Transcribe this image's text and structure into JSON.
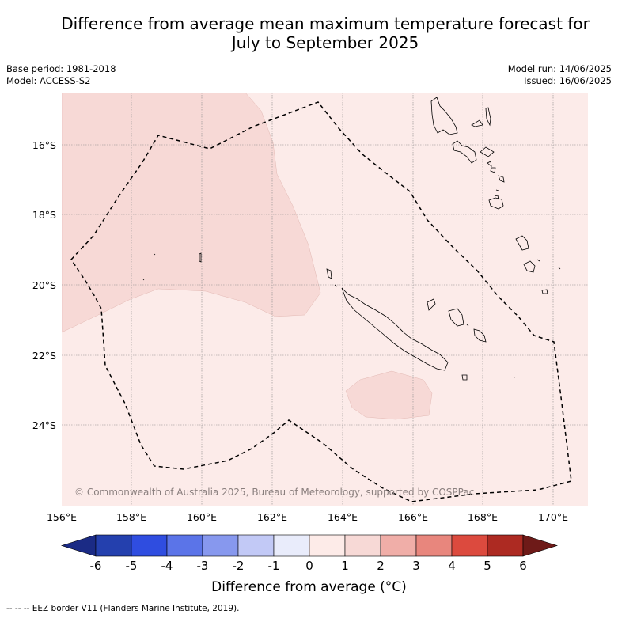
{
  "header": {
    "title_line1": "Difference from average mean maximum temperature forecast for",
    "title_line2": "July to September 2025",
    "base_period": "Base period: 1981-2018",
    "model": "Model: ACCESS-S2",
    "model_run": "Model run: 14/06/2025",
    "issued": "Issued: 16/06/2025"
  },
  "map": {
    "lat_labels": [
      "16°S",
      "18°S",
      "20°S",
      "22°S",
      "24°S"
    ],
    "lon_labels": [
      "156°E",
      "158°E",
      "160°E",
      "162°E",
      "164°E",
      "166°E",
      "168°E",
      "170°E"
    ],
    "copyright": "© Commonwealth of Australia 2025, Bureau of Meteorology, supported by COSPPac",
    "background_class": "0 to 1",
    "background_color": "#fcebe9",
    "warm_region_class": "1 to 2",
    "warm_region_color": "#f7d9d6"
  },
  "colorbar": {
    "ticks": [
      "-6",
      "-5",
      "-4",
      "-3",
      "-2",
      "-1",
      "0",
      "1",
      "2",
      "3",
      "4",
      "5",
      "6"
    ],
    "colors": [
      "#1b2b85",
      "#2440ae",
      "#2f4de0",
      "#5b74e8",
      "#8798ee",
      "#c2c9f6",
      "#e9ecfb",
      "#fdebe8",
      "#f7d9d6",
      "#f0aea8",
      "#e8867d",
      "#dc4a3e",
      "#ad2a22",
      "#6e1a18"
    ],
    "label": "Difference from average (°C)"
  },
  "footer": {
    "eez_legend": "--  --  -- EEZ border V11 (Flanders Marine Institute, 2019)."
  }
}
